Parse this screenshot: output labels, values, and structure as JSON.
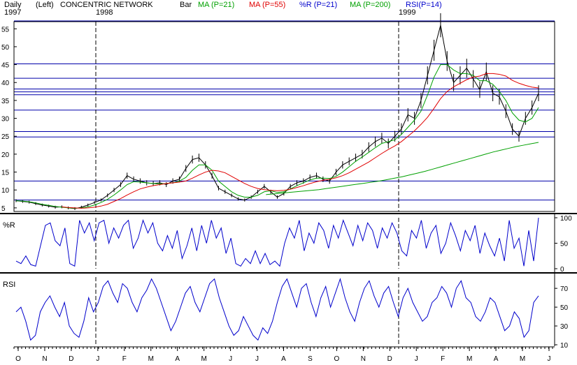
{
  "header": {
    "period": "Daily",
    "year_left": "1997",
    "scale": "(Left)",
    "title": "CONCENTRIC NETWORK",
    "year_mid": "1998",
    "chart_style": "Bar",
    "year_right": "1999"
  },
  "legend": [
    {
      "label": "MA (P=21)",
      "color": "#00a000"
    },
    {
      "label": "MA (P=55)",
      "color": "#e00000"
    },
    {
      "label": "%R (P=21)",
      "color": "#0000cc"
    },
    {
      "label": "MA (P=200)",
      "color": "#00a000"
    },
    {
      "label": "RSI(P=14)",
      "color": "#0000cc"
    }
  ],
  "chart_data": [
    {
      "type": "bar",
      "panel": "price",
      "ylim": [
        4,
        57
      ],
      "yticks": [
        5,
        10,
        15,
        20,
        25,
        30,
        35,
        40,
        45,
        50,
        55
      ],
      "grid_levels": [
        7.2,
        12.5,
        24.8,
        26.3,
        32.3,
        36.6,
        37.4,
        38.2,
        41.2,
        45.2,
        57.2
      ],
      "separators": [
        "Jan 1998",
        "Jan 1999"
      ],
      "series": [
        {
          "name": "price",
          "color": "#000000",
          "values": [
            7,
            6.8,
            6.6,
            6.2,
            5.8,
            5.5,
            5.2,
            5.3,
            5,
            4.8,
            5.2,
            5.8,
            6.5,
            7.2,
            8.5,
            10,
            11.5,
            14,
            13,
            12.5,
            12,
            11.8,
            12,
            11.5,
            12.5,
            13,
            16,
            18.5,
            19,
            17,
            14,
            10.5,
            9.5,
            8.5,
            7.5,
            7.2,
            8,
            9.5,
            11,
            9.5,
            8,
            9,
            11,
            12,
            12.5,
            13.5,
            14,
            13,
            12.5,
            15,
            17,
            18,
            19,
            20,
            22,
            23.5,
            24.5,
            23,
            25,
            27,
            31,
            30,
            35,
            42,
            49,
            56,
            46,
            40,
            42,
            44,
            41,
            38,
            43,
            37,
            36,
            32,
            27,
            25,
            30,
            33,
            37
          ]
        },
        {
          "name": "MA (P=21)",
          "color": "#00a000",
          "values": [
            7,
            6.9,
            6.7,
            6.4,
            6,
            5.7,
            5.4,
            5.2,
            5,
            4.9,
            5,
            5.3,
            5.8,
            6.5,
            7.4,
            8.6,
            10,
            11.5,
            12.3,
            12.2,
            12,
            11.8,
            11.7,
            11.8,
            12,
            12.5,
            13.5,
            15.5,
            17,
            17,
            15.5,
            12.5,
            11,
            9.5,
            8.5,
            8,
            8,
            8.5,
            9.5,
            9.8,
            9.3,
            9.5,
            10.3,
            11.2,
            12,
            12.8,
            13.3,
            13.3,
            13.2,
            13.8,
            15,
            16.5,
            18,
            19.2,
            20.5,
            21.8,
            23,
            23.5,
            24,
            25.5,
            27.5,
            29.5,
            32,
            36.5,
            41.5,
            45,
            45,
            43.5,
            42.5,
            42.5,
            42,
            40.5,
            40.5,
            39.5,
            37.5,
            35,
            31.5,
            29.5,
            29,
            30,
            33
          ]
        },
        {
          "name": "MA (P=55)",
          "color": "#e00000",
          "values": [
            null,
            null,
            null,
            null,
            null,
            null,
            null,
            5.3,
            5.1,
            5,
            4.9,
            5,
            5.2,
            5.5,
            6,
            6.8,
            7.6,
            8.6,
            9.5,
            10.3,
            10.8,
            11.2,
            11.5,
            11.8,
            12,
            12.2,
            12.5,
            13.3,
            14.2,
            15,
            15.5,
            15.3,
            14.8,
            13.8,
            12.8,
            11.8,
            11,
            10.4,
            10.1,
            9.9,
            9.8,
            9.9,
            10.2,
            10.7,
            11.2,
            11.8,
            12.3,
            12.7,
            13,
            13.4,
            14,
            14.8,
            15.8,
            16.8,
            17.8,
            19,
            20.2,
            21.3,
            22.3,
            23.5,
            25,
            26.5,
            28.3,
            30.3,
            32.8,
            35.5,
            37.5,
            38.8,
            39.8,
            40.8,
            41.5,
            41.8,
            42.5,
            42.5,
            42.3,
            41.8,
            40.6,
            39.8,
            39.2,
            38.7,
            38.5
          ]
        },
        {
          "name": "MA (P=200)",
          "color": "#00a000",
          "values": [
            null,
            null,
            null,
            null,
            null,
            null,
            null,
            null,
            null,
            null,
            null,
            null,
            null,
            null,
            null,
            null,
            null,
            null,
            null,
            null,
            null,
            null,
            null,
            null,
            null,
            null,
            null,
            null,
            null,
            null,
            null,
            null,
            null,
            8.7,
            8.9,
            9.1,
            9.3,
            9.5,
            9.7,
            9.9,
            10.1,
            10.4,
            10.7,
            11,
            11.3,
            11.6,
            11.9,
            12.2,
            12.5,
            12.9,
            13.3,
            13.7,
            14.2,
            14.7,
            15.2,
            15.8,
            16.4,
            17,
            17.6,
            18.2,
            18.8,
            19.4,
            20,
            20.6,
            21.1,
            21.6,
            22.1,
            22.5,
            22.9,
            23.3
          ]
        }
      ]
    },
    {
      "type": "line",
      "panel": "%R",
      "title": "%R",
      "ylim": [
        0,
        100
      ],
      "yticks": [
        0,
        50,
        100
      ],
      "series": [
        {
          "name": "%R (P=21)",
          "color": "#0000cc",
          "values": [
            15,
            10,
            25,
            8,
            5,
            45,
            85,
            90,
            55,
            45,
            80,
            10,
            5,
            95,
            70,
            90,
            55,
            90,
            95,
            50,
            80,
            60,
            85,
            95,
            40,
            60,
            95,
            70,
            90,
            50,
            35,
            65,
            40,
            75,
            20,
            45,
            80,
            35,
            85,
            50,
            95,
            60,
            80,
            30,
            60,
            10,
            5,
            20,
            10,
            35,
            10,
            30,
            8,
            15,
            5,
            50,
            80,
            60,
            95,
            35,
            70,
            50,
            90,
            75,
            40,
            85,
            60,
            95,
            70,
            45,
            85,
            55,
            90,
            75,
            40,
            80,
            60,
            90,
            70,
            35,
            25,
            75,
            60,
            95,
            40,
            70,
            85,
            30,
            50,
            90,
            65,
            35,
            75,
            55,
            85,
            30,
            70,
            45,
            25,
            60,
            15,
            95,
            40,
            60,
            5,
            75,
            15,
            100
          ]
        }
      ]
    },
    {
      "type": "line",
      "panel": "RSI",
      "title": "RSI",
      "ylim": [
        10,
        82
      ],
      "yticks": [
        10,
        30,
        50,
        70
      ],
      "series": [
        {
          "name": "RSI(P=14)",
          "color": "#0000cc",
          "values": [
            45,
            50,
            35,
            15,
            20,
            45,
            55,
            62,
            50,
            40,
            55,
            30,
            22,
            18,
            35,
            60,
            45,
            55,
            72,
            78,
            65,
            55,
            75,
            70,
            55,
            45,
            60,
            68,
            80,
            70,
            55,
            40,
            25,
            35,
            50,
            65,
            72,
            55,
            45,
            60,
            75,
            80,
            60,
            45,
            30,
            20,
            25,
            40,
            30,
            20,
            15,
            28,
            22,
            35,
            55,
            72,
            80,
            65,
            50,
            70,
            75,
            55,
            40,
            60,
            72,
            50,
            65,
            80,
            60,
            45,
            35,
            55,
            70,
            78,
            62,
            50,
            65,
            72,
            55,
            40,
            60,
            70,
            55,
            45,
            35,
            40,
            55,
            60,
            72,
            65,
            50,
            70,
            78,
            60,
            55,
            40,
            35,
            45,
            60,
            55,
            40,
            25,
            30,
            45,
            38,
            18,
            25,
            55,
            62
          ]
        }
      ]
    }
  ],
  "x_axis": {
    "month_labels": [
      "O",
      "N",
      "D",
      "J",
      "F",
      "M",
      "A",
      "M",
      "J",
      "J",
      "A",
      "S",
      "O",
      "N",
      "D",
      "J",
      "F",
      "M",
      "A",
      "M",
      "J"
    ]
  }
}
